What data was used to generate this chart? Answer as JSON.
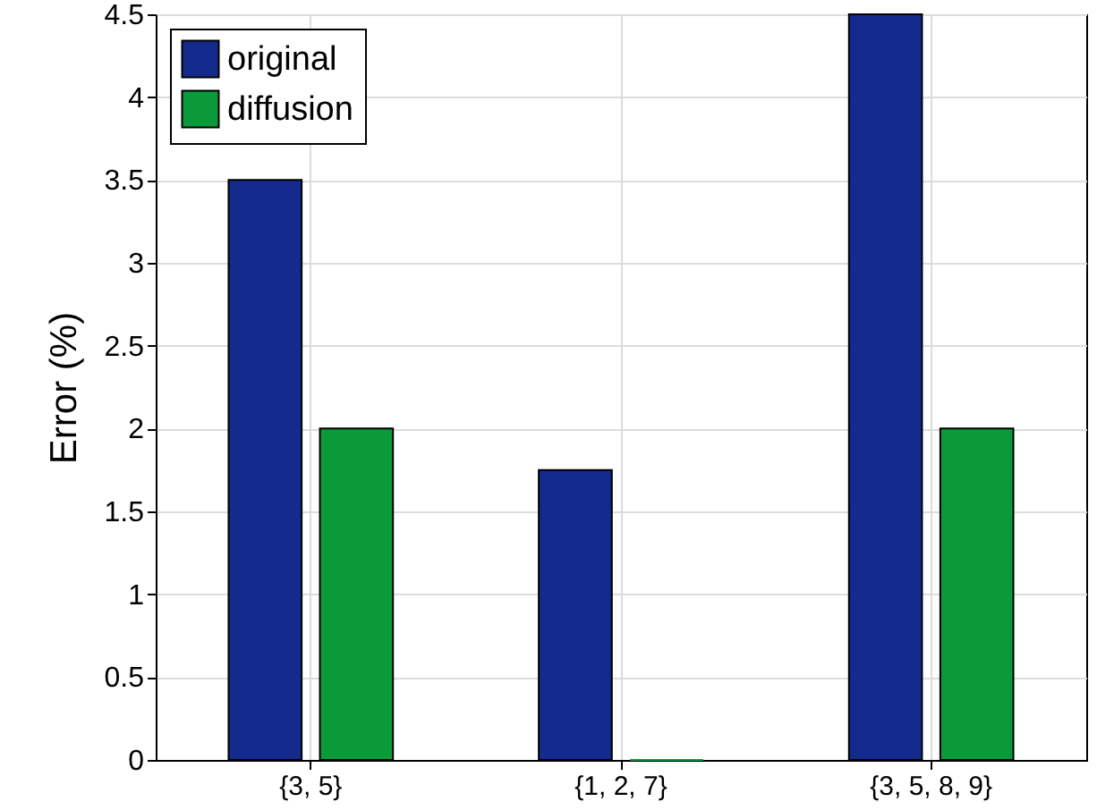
{
  "chart_data": {
    "type": "bar",
    "ylabel": "Error (%)",
    "categories": [
      "{3, 5}",
      "{1, 2, 7}",
      "{3, 5, 8, 9}"
    ],
    "series": [
      {
        "name": "original",
        "color": "#142a8c",
        "values": [
          3.5,
          1.75,
          4.5
        ]
      },
      {
        "name": "diffusion",
        "color": "#0a9a3a",
        "values": [
          2,
          0,
          2
        ]
      }
    ],
    "ylim": [
      0,
      4.5
    ],
    "yticks": [
      0,
      0.5,
      1,
      1.5,
      2,
      2.5,
      3,
      3.5,
      4,
      4.5
    ],
    "grid": true,
    "legend": "top left"
  }
}
